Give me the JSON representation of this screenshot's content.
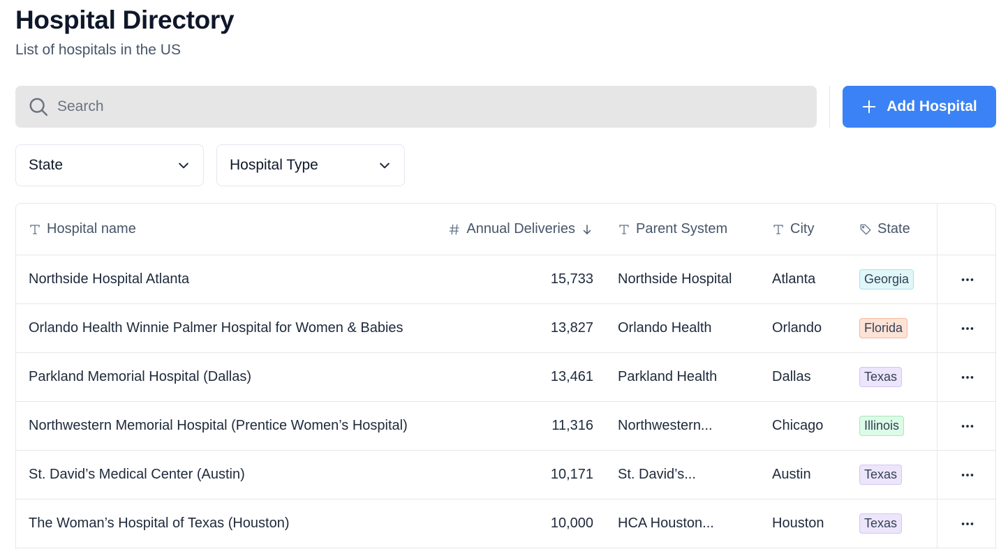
{
  "header": {
    "title": "Hospital Directory",
    "subtitle": "List of hospitals in the US"
  },
  "search": {
    "placeholder": "Search",
    "value": ""
  },
  "actions": {
    "add_label": "Add Hospital"
  },
  "filters": [
    {
      "label": "State"
    },
    {
      "label": "Hospital Type"
    }
  ],
  "table": {
    "columns": {
      "name": "Hospital name",
      "deliveries": "Annual Deliveries",
      "parent": "Parent System",
      "city": "City",
      "state": "State"
    },
    "rows": [
      {
        "name": "Northside Hospital Atlanta",
        "deliveries": "15,733",
        "parent": "Northside Hospital",
        "city": "Atlanta",
        "state": "Georgia",
        "state_bg": "#e0f7fa",
        "state_border": "#a5e3ec",
        "state_color": "#334155"
      },
      {
        "name": "Orlando Health Winnie Palmer Hospital for Women & Babies",
        "deliveries": "13,827",
        "parent": "Orlando Health",
        "city": "Orlando",
        "state": "Florida",
        "state_bg": "#fde2d6",
        "state_border": "#f5b8a0",
        "state_color": "#334155"
      },
      {
        "name": "Parkland Memorial Hospital (Dallas)",
        "deliveries": "13,461",
        "parent": "Parkland Health",
        "city": "Dallas",
        "state": "Texas",
        "state_bg": "#ede5fb",
        "state_border": "#d4c4f5",
        "state_color": "#334155"
      },
      {
        "name": "Northwestern Memorial Hospital (Prentice Women’s Hospital)",
        "deliveries": "11,316",
        "parent": "Northwestern...",
        "city": "Chicago",
        "state": "Illinois",
        "state_bg": "#dcfce7",
        "state_border": "#a7e8bd",
        "state_color": "#334155"
      },
      {
        "name": "St. David’s Medical Center (Austin)",
        "deliveries": "10,171",
        "parent": "St. David’s...",
        "city": "Austin",
        "state": "Texas",
        "state_bg": "#ede5fb",
        "state_border": "#d4c4f5",
        "state_color": "#334155"
      },
      {
        "name": "The Woman’s Hospital of Texas (Houston)",
        "deliveries": "10,000",
        "parent": "HCA Houston...",
        "city": "Houston",
        "state": "Texas",
        "state_bg": "#ede5fb",
        "state_border": "#d4c4f5",
        "state_color": "#334155"
      }
    ]
  },
  "icons": {
    "search": "search-icon",
    "add": "plus-icon",
    "dropdown": "chevron-down-icon",
    "text_column": "text-type-icon",
    "number_column": "hash-icon",
    "tag_column": "tag-icon",
    "sort": "arrow-down-icon",
    "row_menu": "more-horizontal-icon"
  },
  "colors": {
    "accent": "#3b82f6",
    "search_bg": "#e6e6e6"
  }
}
